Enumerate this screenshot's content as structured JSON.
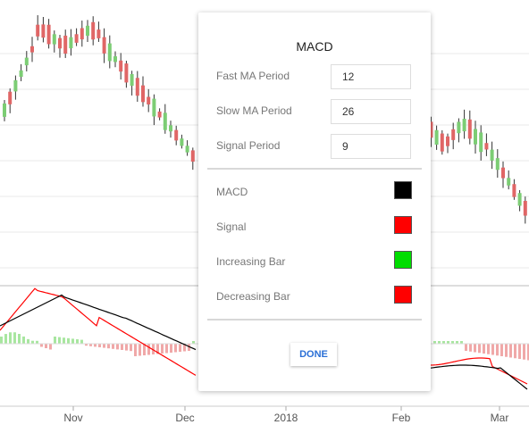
{
  "chart": {
    "x_axis_labels": [
      "Nov",
      "Dec",
      "2018",
      "Feb",
      "Mar"
    ],
    "colors": {
      "up": "#7ccd74",
      "down": "#e06666",
      "macd_line": "#000000",
      "signal_line": "#ff0000",
      "hist_up": "#a8e6a0",
      "hist_down": "#f0a8a8",
      "grid": "#e8e8e8"
    }
  },
  "dialog": {
    "title": "MACD",
    "fields": [
      {
        "label": "Fast MA Period",
        "value": "12"
      },
      {
        "label": "Slow MA Period",
        "value": "26"
      },
      {
        "label": "Signal Period",
        "value": "9"
      }
    ],
    "colors": [
      {
        "label": "MACD",
        "color": "#000000"
      },
      {
        "label": "Signal",
        "color": "#ff0000"
      },
      {
        "label": "Increasing Bar",
        "color": "#00dd00"
      },
      {
        "label": "Decreasing Bar",
        "color": "#ff0000"
      }
    ],
    "done_label": "DONE"
  }
}
